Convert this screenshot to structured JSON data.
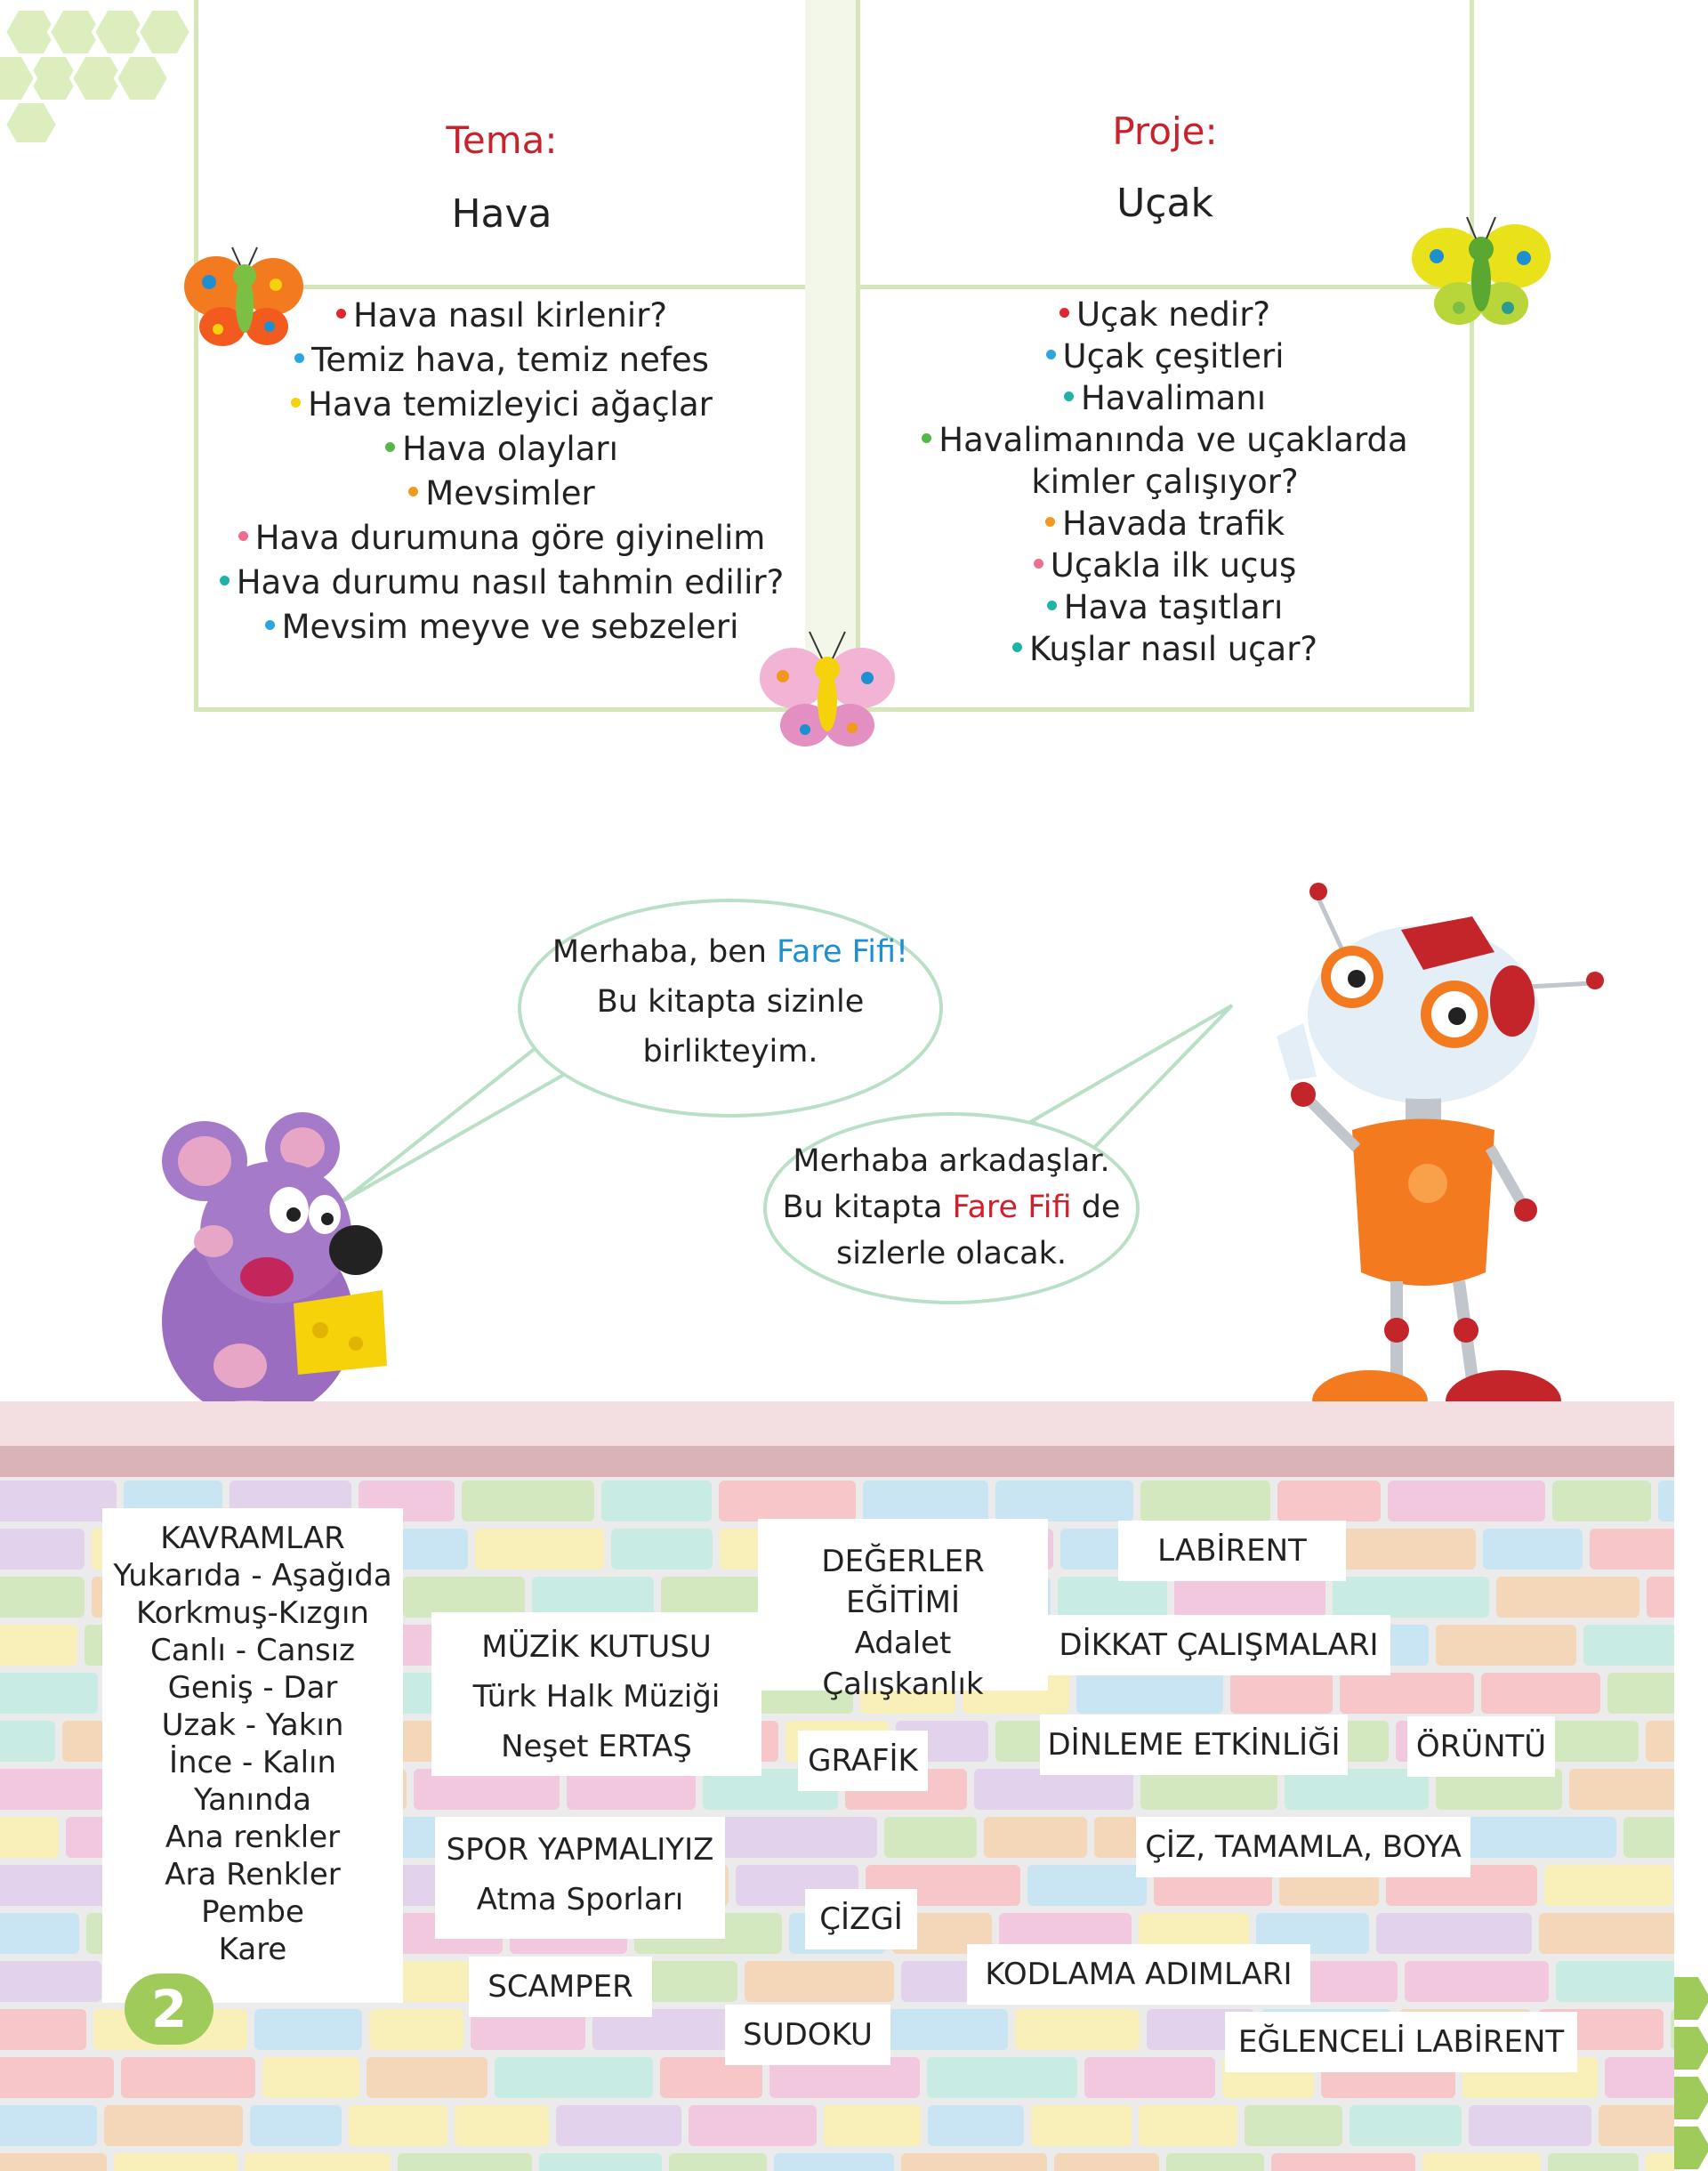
{
  "theme": {
    "title": "Tema:",
    "name": "Hava",
    "items": [
      {
        "text": "Hava nasıl kirlenir?",
        "color": "#e0262e"
      },
      {
        "text": "Temiz hava, temiz nefes",
        "color": "#2aa6e0"
      },
      {
        "text": "Hava temizleyici ağaçlar",
        "color": "#f5d20a"
      },
      {
        "text": "Hava olayları",
        "color": "#55b947"
      },
      {
        "text": "Mevsimler",
        "color": "#f39a1e"
      },
      {
        "text": "Hava durumuna göre giyinelim",
        "color": "#ee6f8d"
      },
      {
        "text": "Hava durumu nasıl tahmin edilir?",
        "color": "#1fb3a8"
      },
      {
        "text": "Mevsim meyve ve sebzeleri",
        "color": "#2aa6e0"
      }
    ]
  },
  "project": {
    "title": "Proje:",
    "name": "Uçak",
    "items": [
      {
        "text": "Uçak nedir?",
        "color": "#e0262e"
      },
      {
        "text": "Uçak çeşitleri",
        "color": "#2aa6e0"
      },
      {
        "text": "Havalimanı",
        "color": "#1fb3a8"
      },
      {
        "text": "Havalimanında ve uçaklarda kimler çalışıyor?",
        "color": "#55b947"
      },
      {
        "text": "Havada trafik",
        "color": "#f39a1e"
      },
      {
        "text": "Uçakla ilk uçuş",
        "color": "#ee6f8d"
      },
      {
        "text": "Hava taşıtları",
        "color": "#1fb3a8"
      },
      {
        "text": "Kuşlar nasıl uçar?",
        "color": "#1fb3a8"
      }
    ]
  },
  "bubble_mouse": {
    "line1_pre": "Merhaba, ben ",
    "line1_name": "Fare Fifi!",
    "line2": "Bu kitapta sizinle",
    "line3": "birlikteyim."
  },
  "bubble_robot": {
    "line1": "Merhaba arkadaşlar.",
    "line2_pre": "Bu kitapta ",
    "line2_name": "Fare Fifi",
    "line2_post": " de",
    "line3": "sizlerle olacak."
  },
  "wall_notes": {
    "kavramlar": [
      "KAVRAMLAR",
      "Yukarıda - Aşağıda",
      "Korkmuş-Kızgın",
      "Canlı - Cansız",
      "Geniş - Dar",
      "Uzak - Yakın",
      "İnce - Kalın",
      "Yanında",
      "Ana renkler",
      "Ara Renkler",
      "Pembe",
      "Kare"
    ],
    "muzik": [
      "MÜZİK KUTUSU",
      "Türk Halk Müziği",
      "Neşet ERTAŞ"
    ],
    "degerler": [
      "DEĞERLER EĞİTİMİ",
      "Adalet",
      "Çalışkanlık"
    ],
    "labirent": "LABİRENT",
    "dikkat": "DİKKAT ÇALIŞMALARI",
    "grafik": "GRAFİK",
    "dinleme": "DİNLEME ETKİNLİĞİ",
    "oruntu": "ÖRÜNTÜ",
    "spor": [
      "SPOR YAPMALIYIZ",
      "Atma Sporları"
    ],
    "ciz": "ÇİZ, TAMAMLA, BOYA",
    "cizgi": "ÇİZGİ",
    "kodlama": "KODLAMA ADIMLARI",
    "scamper": "SCAMPER",
    "sudoku": "SUDOKU",
    "eglenceli": "EĞLENCELİ LABİRENT"
  },
  "page_number": "2",
  "colors": {
    "frame_green": "#d5e6b8",
    "title_red": "#c8232c",
    "name_blue": "#1e8fd0",
    "name_red": "#d0202d",
    "hex_green": "#c9e29a"
  }
}
